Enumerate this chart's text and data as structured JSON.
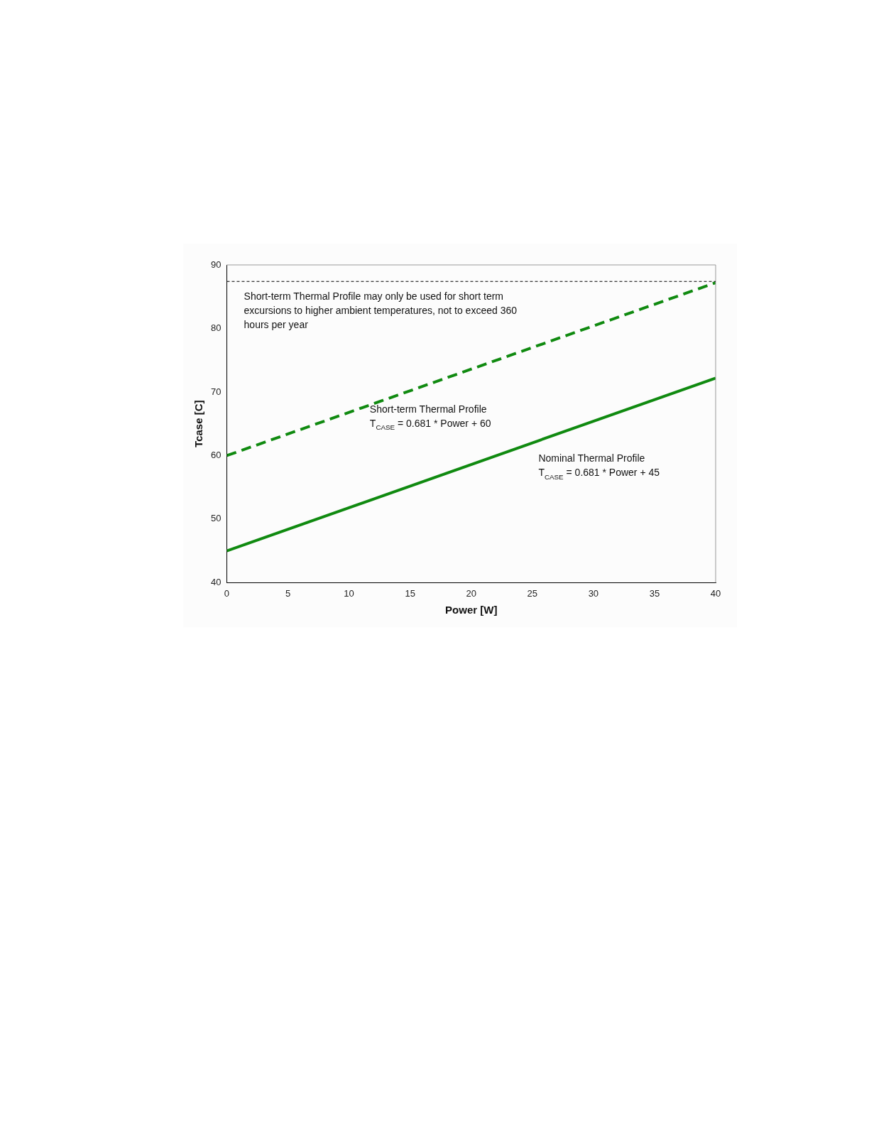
{
  "chart_data": {
    "type": "line",
    "xlabel": "Power [W]",
    "ylabel": "Tcase [C]",
    "x": [
      0,
      40
    ],
    "series": [
      {
        "name": "Short-term Thermal Profile",
        "color": "#108a10",
        "values": [
          60,
          87.2
        ],
        "line_style": "dashed"
      },
      {
        "name": "Nominal Thermal Profile",
        "color": "#108a10",
        "values": [
          45,
          72.2
        ],
        "line_style": "solid"
      }
    ],
    "xlim": [
      0,
      40
    ],
    "xticks": [
      0,
      5,
      10,
      15,
      20,
      25,
      30,
      35,
      40
    ],
    "ylim": [
      40,
      90
    ],
    "yticks": [
      40,
      50,
      60,
      70,
      80,
      90
    ],
    "ref_lines": [
      {
        "axis": "y",
        "value": 87.4,
        "color": "#000000",
        "line_style": "dashed"
      }
    ],
    "annotations": [
      "Short-term Thermal Profile may only be used for short term excursions to higher ambient temperatures, not to exceed 360 hours per year",
      "T$_{CASE}$ = 0.681 * Power + 60",
      "T$_{CASE}$ = 0.681 * Power + 45"
    ],
    "grid": false,
    "legend": false,
    "marker": "none"
  }
}
